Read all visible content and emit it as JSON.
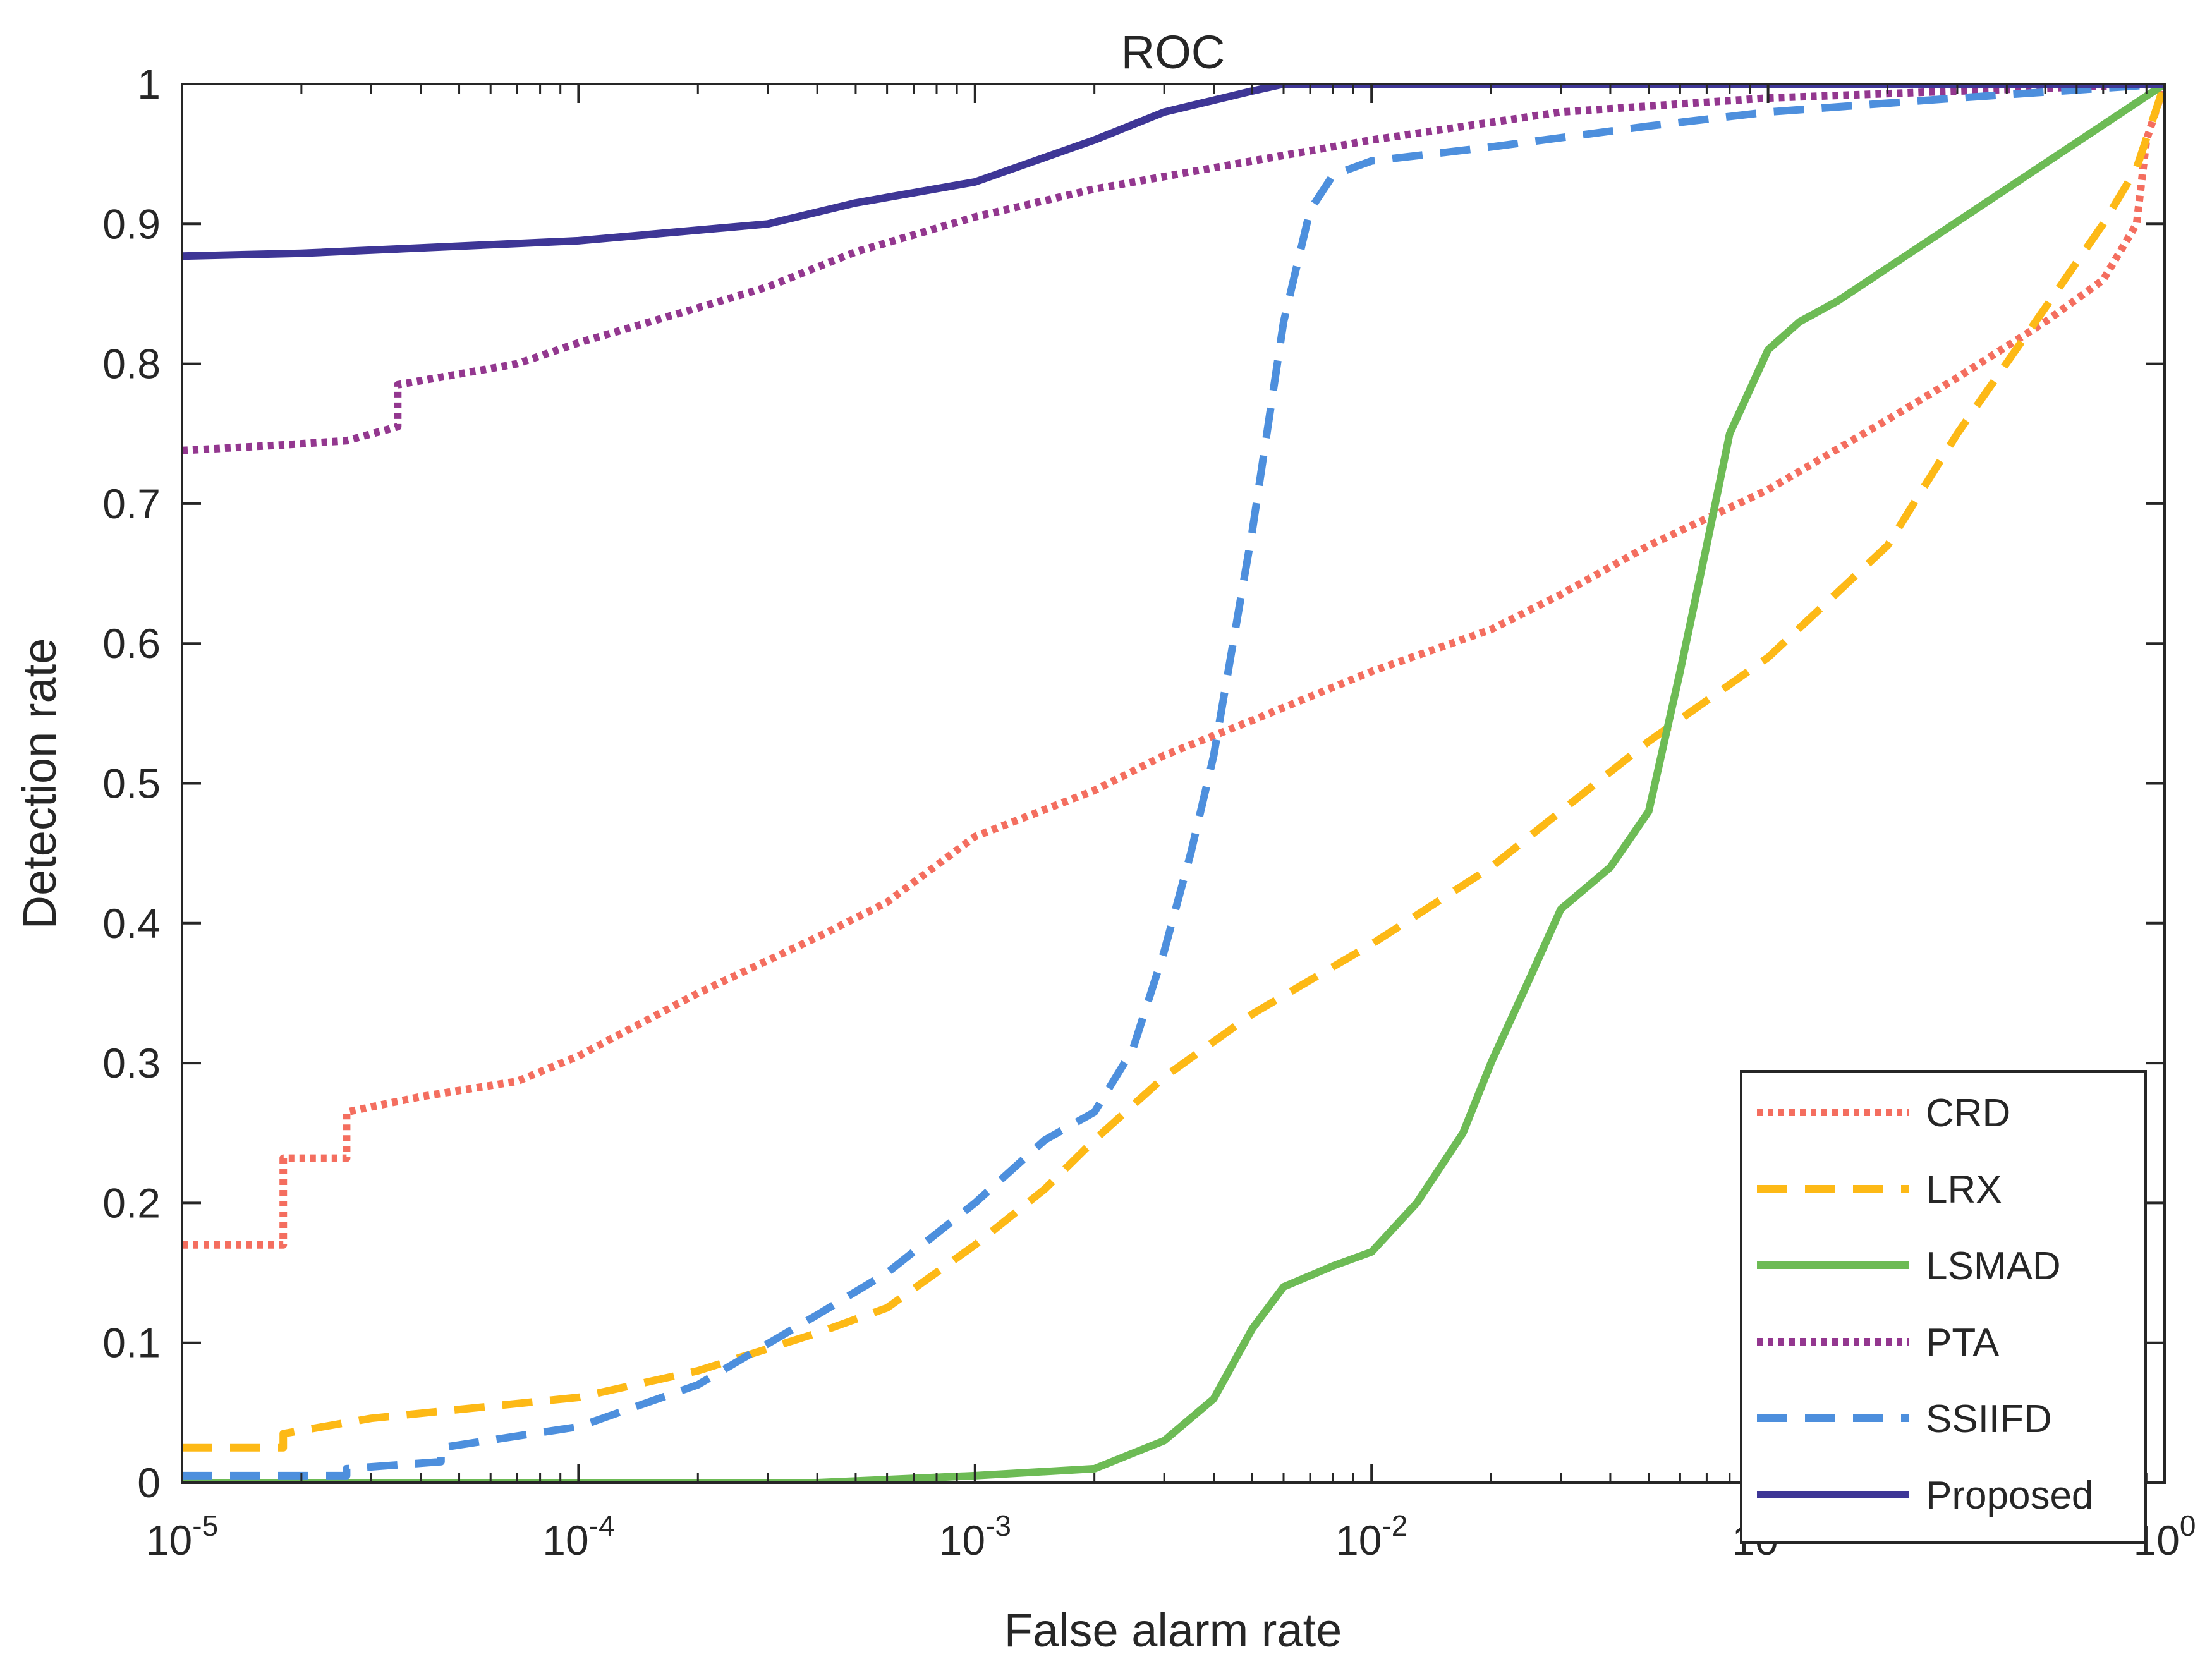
{
  "chart_data": {
    "type": "line",
    "title": "ROC",
    "xlabel": "False alarm rate",
    "ylabel": "Detection rate",
    "x_scale": "log",
    "xlim": [
      1e-05,
      1
    ],
    "ylim": [
      0,
      1
    ],
    "x_ticks": [
      {
        "base": "10",
        "exp": "-5",
        "value": 1e-05
      },
      {
        "base": "10",
        "exp": "-4",
        "value": 0.0001
      },
      {
        "base": "10",
        "exp": "-3",
        "value": 0.001
      },
      {
        "base": "10",
        "exp": "-2",
        "value": 0.01
      },
      {
        "base": "10",
        "exp": "-1",
        "value": 0.1
      },
      {
        "base": "10",
        "exp": "0",
        "value": 1
      }
    ],
    "y_ticks": [
      "0",
      "0.1",
      "0.2",
      "0.3",
      "0.4",
      "0.5",
      "0.6",
      "0.7",
      "0.8",
      "0.9",
      "1"
    ],
    "grid": false,
    "legend_position": "bottom-right",
    "series": [
      {
        "name": "CRD",
        "color": "#f46e5f",
        "style": "dotted",
        "x": [
          1e-05,
          1.8e-05,
          1.8e-05,
          2.6e-05,
          2.6e-05,
          4e-05,
          7e-05,
          0.0001,
          0.0002,
          0.0004,
          0.0006,
          0.001,
          0.002,
          0.003,
          0.005,
          0.01,
          0.02,
          0.03,
          0.05,
          0.1,
          0.2,
          0.3,
          0.5,
          0.7,
          0.85,
          0.9,
          1
        ],
        "y": [
          0.17,
          0.17,
          0.232,
          0.232,
          0.265,
          0.276,
          0.287,
          0.305,
          0.35,
          0.39,
          0.415,
          0.462,
          0.495,
          0.52,
          0.545,
          0.58,
          0.61,
          0.635,
          0.67,
          0.71,
          0.76,
          0.79,
          0.83,
          0.86,
          0.9,
          0.96,
          1
        ]
      },
      {
        "name": "LRX",
        "color": "#fdb916",
        "style": "dashed",
        "x": [
          1e-05,
          1.8e-05,
          1.8e-05,
          3e-05,
          0.0001,
          0.0002,
          0.0004,
          0.0006,
          0.001,
          0.0015,
          0.002,
          0.003,
          0.005,
          0.01,
          0.02,
          0.03,
          0.05,
          0.1,
          0.2,
          0.3,
          0.5,
          0.7,
          0.85,
          1
        ],
        "y": [
          0.025,
          0.025,
          0.035,
          0.046,
          0.061,
          0.08,
          0.107,
          0.125,
          0.17,
          0.21,
          0.245,
          0.29,
          0.335,
          0.385,
          0.44,
          0.48,
          0.53,
          0.59,
          0.67,
          0.75,
          0.84,
          0.9,
          0.94,
          1
        ]
      },
      {
        "name": "LSMAD",
        "color": "#6dbb55",
        "style": "solid",
        "x": [
          1e-05,
          0.0004,
          0.001,
          0.002,
          0.003,
          0.004,
          0.005,
          0.006,
          0.008,
          0.01,
          0.013,
          0.017,
          0.02,
          0.025,
          0.03,
          0.04,
          0.05,
          0.06,
          0.07,
          0.08,
          0.1,
          0.12,
          0.15,
          1
        ],
        "y": [
          0,
          0,
          0.005,
          0.01,
          0.03,
          0.06,
          0.11,
          0.14,
          0.155,
          0.165,
          0.2,
          0.25,
          0.3,
          0.36,
          0.41,
          0.44,
          0.48,
          0.58,
          0.67,
          0.75,
          0.81,
          0.83,
          0.845,
          1
        ]
      },
      {
        "name": "PTA",
        "color": "#93378f",
        "style": "dotted",
        "x": [
          1e-05,
          1.8e-05,
          2.6e-05,
          3.5e-05,
          3.5e-05,
          7e-05,
          0.0001,
          0.0002,
          0.0003,
          0.0005,
          0.001,
          0.002,
          0.005,
          0.01,
          0.03,
          0.1,
          0.3,
          1
        ],
        "y": [
          0.738,
          0.742,
          0.745,
          0.755,
          0.785,
          0.8,
          0.815,
          0.84,
          0.855,
          0.88,
          0.905,
          0.925,
          0.945,
          0.96,
          0.98,
          0.99,
          0.995,
          1
        ]
      },
      {
        "name": "SSIIFD",
        "color": "#4d8fdd",
        "style": "dashed",
        "x": [
          1e-05,
          2.6e-05,
          2.6e-05,
          4.5e-05,
          4.5e-05,
          0.0001,
          0.0002,
          0.0004,
          0.0006,
          0.001,
          0.0015,
          0.002,
          0.0025,
          0.003,
          0.0035,
          0.004,
          0.005,
          0.006,
          0.007,
          0.008,
          0.01,
          0.02,
          0.05,
          0.1,
          0.3,
          1
        ],
        "y": [
          0.005,
          0.005,
          0.01,
          0.015,
          0.025,
          0.04,
          0.07,
          0.12,
          0.15,
          0.2,
          0.245,
          0.265,
          0.31,
          0.38,
          0.45,
          0.52,
          0.68,
          0.83,
          0.91,
          0.935,
          0.945,
          0.955,
          0.97,
          0.98,
          0.99,
          1
        ]
      },
      {
        "name": "Proposed",
        "color": "#3e3696",
        "style": "solid",
        "x": [
          1e-05,
          2e-05,
          0.0001,
          0.0003,
          0.0005,
          0.001,
          0.002,
          0.003,
          0.005,
          0.006,
          1
        ],
        "y": [
          0.877,
          0.879,
          0.888,
          0.9,
          0.915,
          0.93,
          0.96,
          0.98,
          0.995,
          1,
          1
        ]
      }
    ]
  }
}
